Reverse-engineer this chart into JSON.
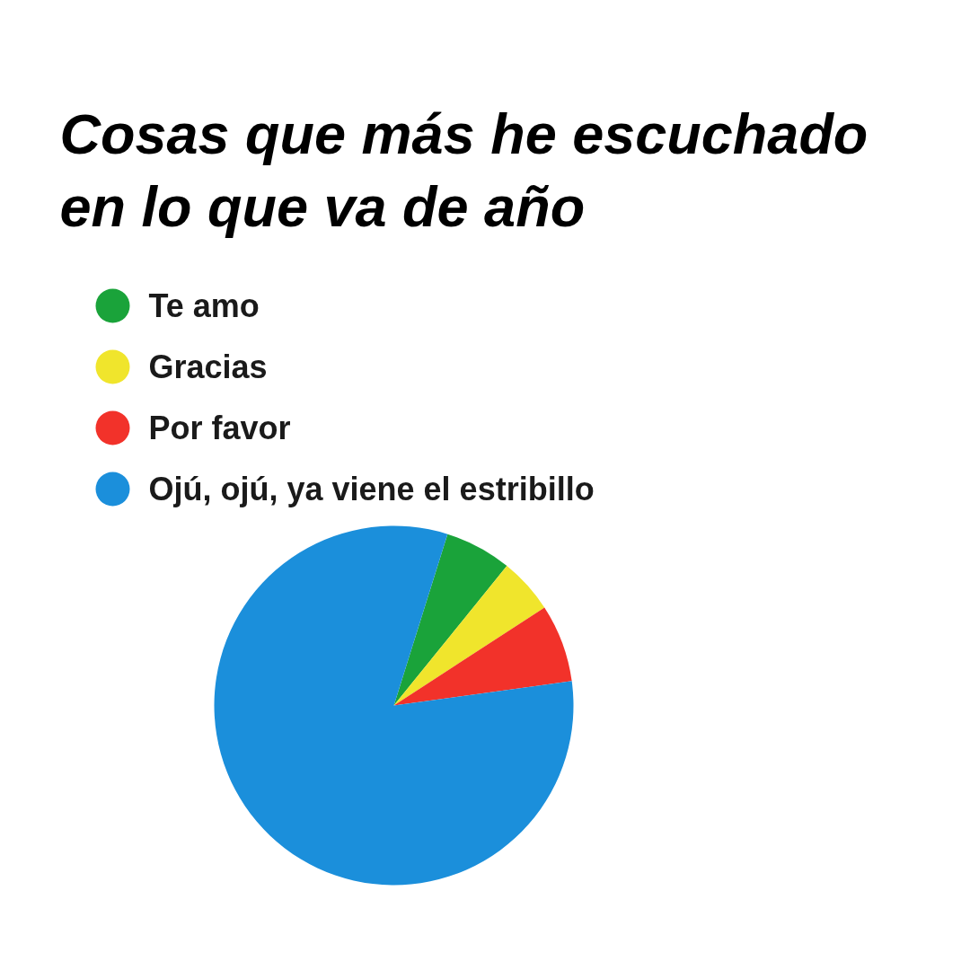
{
  "chart_data": {
    "type": "pie",
    "title": "Cosas que más he escuchado en lo que va de año",
    "categories": [
      "Te amo",
      "Gracias",
      "Por favor",
      "Ojú, ojú, ya viene el estribillo"
    ],
    "values": [
      6,
      5,
      7,
      82
    ],
    "colors": [
      "#1aa33a",
      "#f0e52c",
      "#f2322a",
      "#1b8fdb"
    ],
    "legend": "top left"
  }
}
